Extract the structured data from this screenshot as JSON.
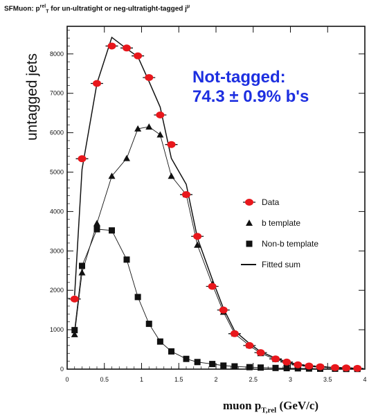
{
  "title": {
    "prefix": "SFMuon: p",
    "sup1": "rel",
    "sub1": "T",
    "middle": " for un-ultratight or neg-ultratight-tagged j",
    "sup2": "μ"
  },
  "annotation": {
    "line1": "Not-tagged:",
    "line2": "74.3 ± 0.9% b's"
  },
  "xlabel": {
    "main": "muon p",
    "sub": "T,rel",
    "unit": " (GeV/c)"
  },
  "ylabel": "untagged jets",
  "legend": {
    "data": "Data",
    "b": "b template",
    "nonb": "Non-b template",
    "fit": "Fitted sum"
  },
  "colors": {
    "data": "#e8171c",
    "annotation": "#1d2fe0",
    "template": "#111111"
  },
  "chart_data": {
    "type": "scatter",
    "xlim": [
      0,
      4
    ],
    "ylim": [
      0,
      8700
    ],
    "xticks": [
      0,
      0.5,
      1,
      1.5,
      2,
      2.5,
      3,
      3.5,
      4
    ],
    "xtick_labels": [
      "0",
      "0.5",
      "1",
      "1.5",
      "2",
      "2.5",
      "3",
      "3.5",
      "4"
    ],
    "yticks": [
      0,
      1000,
      2000,
      3000,
      4000,
      5000,
      6000,
      7000,
      8000
    ],
    "ytick_labels": [
      "0",
      "1000",
      "2000",
      "3000",
      "4000",
      "5000",
      "6000",
      "7000",
      "8000"
    ],
    "x": [
      0.1,
      0.2,
      0.4,
      0.6,
      0.8,
      0.95,
      1.1,
      1.25,
      1.4,
      1.6,
      1.75,
      1.95,
      2.1,
      2.25,
      2.45,
      2.6,
      2.8,
      2.95,
      3.1,
      3.25,
      3.4,
      3.6,
      3.75,
      3.9
    ],
    "series": [
      {
        "name": "Data",
        "marker": "circle",
        "values": [
          1780,
          5340,
          7250,
          8200,
          8150,
          7950,
          7400,
          6450,
          5700,
          4430,
          3370,
          2100,
          1500,
          900,
          600,
          420,
          260,
          180,
          110,
          80,
          60,
          40,
          30,
          20
        ]
      },
      {
        "name": "b template",
        "marker": "triangle",
        "values": [
          880,
          2450,
          3700,
          4900,
          5350,
          6100,
          6150,
          5950,
          4900,
          4430,
          3150,
          2150,
          1450,
          900,
          600,
          400,
          250,
          160,
          100,
          70,
          50,
          30,
          25,
          15
        ]
      },
      {
        "name": "Non-b template",
        "marker": "square",
        "values": [
          990,
          2620,
          3550,
          3520,
          2780,
          1830,
          1150,
          700,
          450,
          260,
          180,
          130,
          90,
          70,
          50,
          40,
          30,
          25,
          20,
          15,
          10,
          10,
          5,
          5
        ]
      },
      {
        "name": "Fitted sum",
        "marker": "line",
        "values": [
          1870,
          5070,
          7250,
          8420,
          8130,
          7930,
          7300,
          6650,
          5350,
          4690,
          3330,
          2280,
          1540,
          970,
          650,
          440,
          280,
          185,
          120,
          85,
          60,
          40,
          30,
          20
        ]
      }
    ]
  }
}
